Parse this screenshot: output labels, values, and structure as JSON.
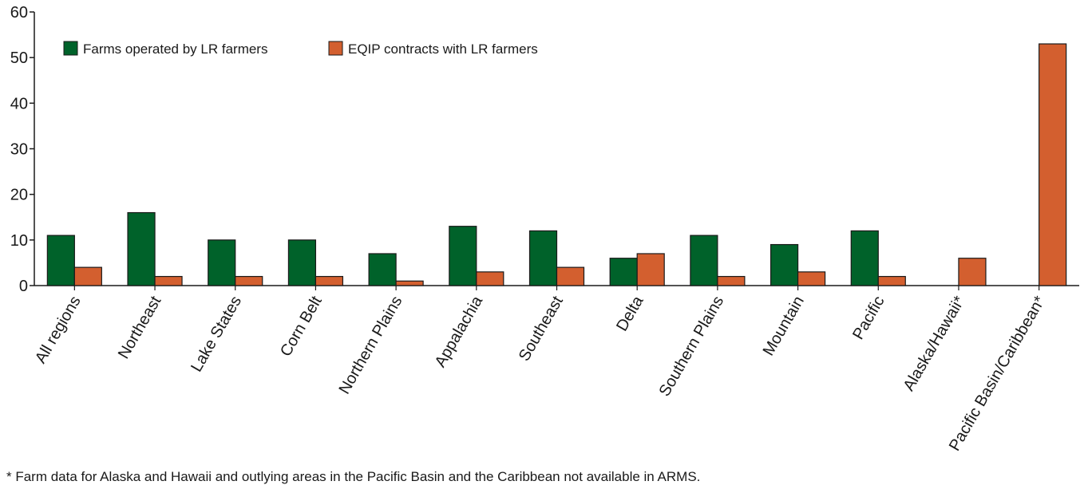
{
  "chart_data": {
    "type": "bar",
    "categories": [
      "All regions",
      "Northeast",
      "Lake States",
      "Corn Belt",
      "Northern Plains",
      "Appalachia",
      "Southeast",
      "Delta",
      "Southern Plains",
      "Mountain",
      "Pacific",
      "Alaska/Hawaii*",
      "Pacific Basin/Caribbean*"
    ],
    "series": [
      {
        "name": "Farms operated by LR farmers",
        "color": "#00622a",
        "values": [
          11,
          16,
          10,
          10,
          7,
          13,
          12,
          6,
          11,
          9,
          12,
          null,
          null
        ]
      },
      {
        "name": "EQIP contracts with LR farmers",
        "color": "#d35f2f",
        "values": [
          4,
          2,
          2,
          2,
          1,
          3,
          4,
          7,
          2,
          3,
          2,
          6,
          53
        ]
      }
    ],
    "ylim": [
      0,
      60
    ],
    "yticks": [
      "0",
      "10",
      "20",
      "30",
      "40",
      "50",
      "60"
    ],
    "xlabel": "",
    "ylabel": "",
    "title": "",
    "legend_position": "top-left",
    "grid": false
  },
  "footnote": "* Farm data for Alaska and Hawaii and outlying areas in the Pacific Basin and the Caribbean not available in ARMS."
}
